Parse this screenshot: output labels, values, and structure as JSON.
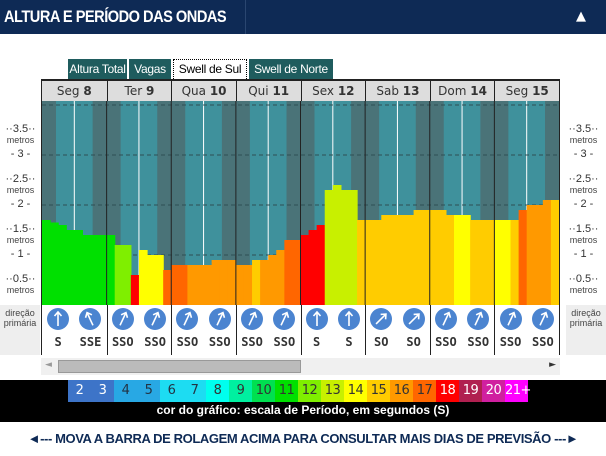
{
  "header": {
    "title": "ALTURA E PERÍODO DAS ONDAS",
    "collapse_icon": "triangle-up-icon"
  },
  "tabs": [
    {
      "label": "Altura Total",
      "active": false
    },
    {
      "label": "Vagas",
      "active": false
    },
    {
      "label": "Swell de Sul",
      "active": true
    },
    {
      "label": "Swell de Norte",
      "active": false
    }
  ],
  "axis": {
    "unit": "metros",
    "ticks": [
      "3.5",
      "3",
      "2.5",
      "2",
      "1.5",
      "1",
      "0.5"
    ],
    "direction_label": "direção primária"
  },
  "chart_data": {
    "type": "bar",
    "ylabel": "metros",
    "ylim": [
      0,
      4
    ],
    "days": [
      {
        "name": "Seg",
        "num": "8"
      },
      {
        "name": "Ter",
        "num": "9"
      },
      {
        "name": "Qua",
        "num": "10"
      },
      {
        "name": "Qui",
        "num": "11"
      },
      {
        "name": "Sex",
        "num": "12"
      },
      {
        "name": "Sab",
        "num": "13"
      },
      {
        "name": "Dom",
        "num": "14"
      },
      {
        "name": "Seg",
        "num": "15"
      }
    ],
    "heights_m": [
      1.7,
      1.65,
      1.6,
      1.5,
      1.5,
      1.4,
      1.4,
      1.4,
      1.4,
      1.2,
      1.2,
      0.6,
      1.1,
      1.0,
      1.0,
      0.7,
      0.8,
      0.8,
      0.8,
      0.8,
      0.8,
      0.9,
      0.9,
      0.9,
      0.8,
      0.8,
      0.9,
      0.9,
      1.0,
      1.1,
      1.3,
      1.3,
      1.4,
      1.5,
      1.6,
      2.3,
      2.4,
      2.3,
      2.3,
      1.7,
      1.7,
      1.7,
      1.8,
      1.8,
      1.8,
      1.8,
      1.9,
      1.9,
      1.9,
      1.9,
      1.8,
      1.8,
      1.8,
      1.7,
      1.7,
      1.7,
      1.7,
      1.7,
      1.7,
      1.9,
      2.0,
      2.0,
      2.1,
      2.1
    ],
    "periods_s": [
      11,
      11,
      11,
      11,
      11,
      11,
      11,
      11,
      11,
      12,
      12,
      18,
      14,
      14,
      14,
      17,
      17,
      17,
      16,
      16,
      16,
      16,
      16,
      16,
      16,
      16,
      15,
      16,
      16,
      16,
      17,
      17,
      18,
      18,
      18,
      13,
      13,
      13,
      13,
      15,
      15,
      15,
      15,
      15,
      15,
      15,
      15,
      15,
      15,
      15,
      15,
      14,
      14,
      15,
      15,
      15,
      14,
      14,
      15,
      17,
      16,
      16,
      16,
      15
    ],
    "directions": [
      "S",
      "SSE",
      "SSO",
      "SSO",
      "SSO",
      "SSO",
      "SSO",
      "SSO",
      "S",
      "S",
      "SO",
      "SO",
      "SSO",
      "SSO",
      "SSO",
      "SSO"
    ]
  },
  "legend": {
    "labels": [
      "2",
      "3",
      "4",
      "5",
      "6",
      "7",
      "8",
      "9",
      "10",
      "11",
      "12",
      "13",
      "14",
      "15",
      "16",
      "17",
      "18",
      "19",
      "20",
      "21+"
    ],
    "colors": [
      "#3d74c8",
      "#3d74c8",
      "#28a8e4",
      "#28a8e4",
      "#1ddcf2",
      "#1ddcf2",
      "#00ffee",
      "#00f0a0",
      "#00e050",
      "#00e000",
      "#7fef00",
      "#c8f000",
      "#ffff00",
      "#ffcc00",
      "#ff9900",
      "#ff6600",
      "#ff0000",
      "#b02050",
      "#d020a0",
      "#ff00ff"
    ],
    "caption": "cor do gráfico: escala de Período, em segundos (S)"
  },
  "footer": {
    "text": "◄--- MOVA A BARRA DE ROLAGEM ACIMA PARA CONSULTAR MAIS DIAS DE PREVISÃO ---►"
  }
}
